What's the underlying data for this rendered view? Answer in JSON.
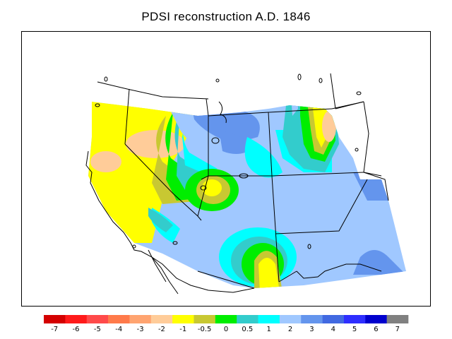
{
  "title": "PDSI reconstruction A.D. 1846",
  "legend": {
    "colors": [
      "#d40000",
      "#ff1a1a",
      "#ff4a4a",
      "#ff7a4a",
      "#ffa470",
      "#ffcc99",
      "#ffff00",
      "#c8c832",
      "#00ee00",
      "#33cccc",
      "#00ffff",
      "#a0c8ff",
      "#6495ed",
      "#4169e1",
      "#2e2eff",
      "#0000cd",
      "#808080"
    ],
    "labels": [
      "-7",
      "-6",
      "-5",
      "-4",
      "-3",
      "-2",
      "-1",
      "-0.5",
      "0",
      "0.5",
      "1",
      "2",
      "3",
      "4",
      "5",
      "6",
      "7"
    ]
  },
  "colors": {
    "frame": "#000000",
    "borders": "#000000",
    "background": "#ffffff"
  }
}
